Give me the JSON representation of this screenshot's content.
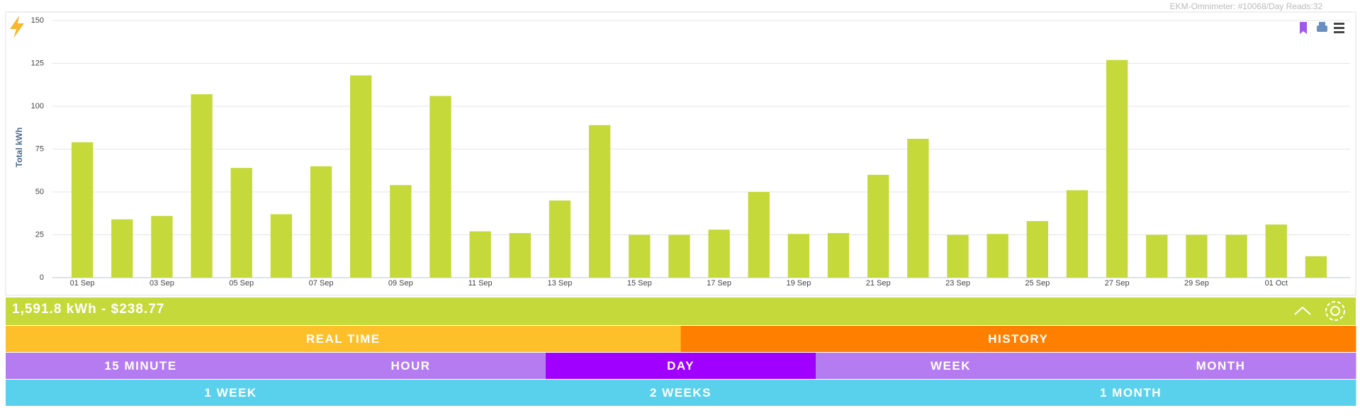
{
  "header": {
    "meter": "EKM-Omnimeter: #10068/Day Reads:32"
  },
  "chart_data": {
    "type": "bar",
    "y_label": "Total kWh",
    "color": "#c5d93a",
    "grid": true,
    "categories": [
      "01 Sep",
      null,
      "03 Sep",
      null,
      "05 Sep",
      null,
      "07 Sep",
      null,
      "09 Sep",
      null,
      "11 Sep",
      null,
      "13 Sep",
      null,
      "15 Sep",
      null,
      "17 Sep",
      null,
      "19 Sep",
      null,
      "21 Sep",
      null,
      "23 Sep",
      null,
      "25 Sep",
      null,
      "27 Sep",
      null,
      "29 Sep",
      null,
      "01 Oct",
      null
    ],
    "values": [
      79,
      34,
      36,
      107,
      64,
      37,
      65,
      118,
      54,
      106,
      27,
      26,
      45,
      89,
      25,
      25,
      28,
      50,
      25.5,
      26,
      60,
      81,
      25,
      25.5,
      33,
      51,
      127,
      25,
      25,
      25,
      31,
      12.5
    ],
    "ylim": [
      0,
      150
    ],
    "yticks": [
      0,
      25,
      50,
      75,
      100,
      125,
      150
    ]
  },
  "summary": {
    "text": "1,591.8 kWh - $238.77",
    "color": "#c5d93a"
  },
  "tabs": [
    {
      "items": [
        {
          "label": "REAL TIME",
          "color": "#fec02a"
        },
        {
          "label": "HISTORY",
          "color": "#ff7f00"
        }
      ]
    },
    {
      "items": [
        {
          "label": "15 MINUTE",
          "color": "#b57bf0"
        },
        {
          "label": "HOUR",
          "color": "#b57bf0"
        },
        {
          "label": "DAY",
          "color": "#a000ff"
        },
        {
          "label": "WEEK",
          "color": "#b57bf0"
        },
        {
          "label": "MONTH",
          "color": "#b57bf0"
        }
      ]
    },
    {
      "items": [
        {
          "label": "1 WEEK",
          "color": "#5ad1ec"
        },
        {
          "label": "2 WEEKS",
          "color": "#5ad1ec"
        },
        {
          "label": "1 MONTH",
          "color": "#5ad1ec"
        }
      ]
    }
  ]
}
